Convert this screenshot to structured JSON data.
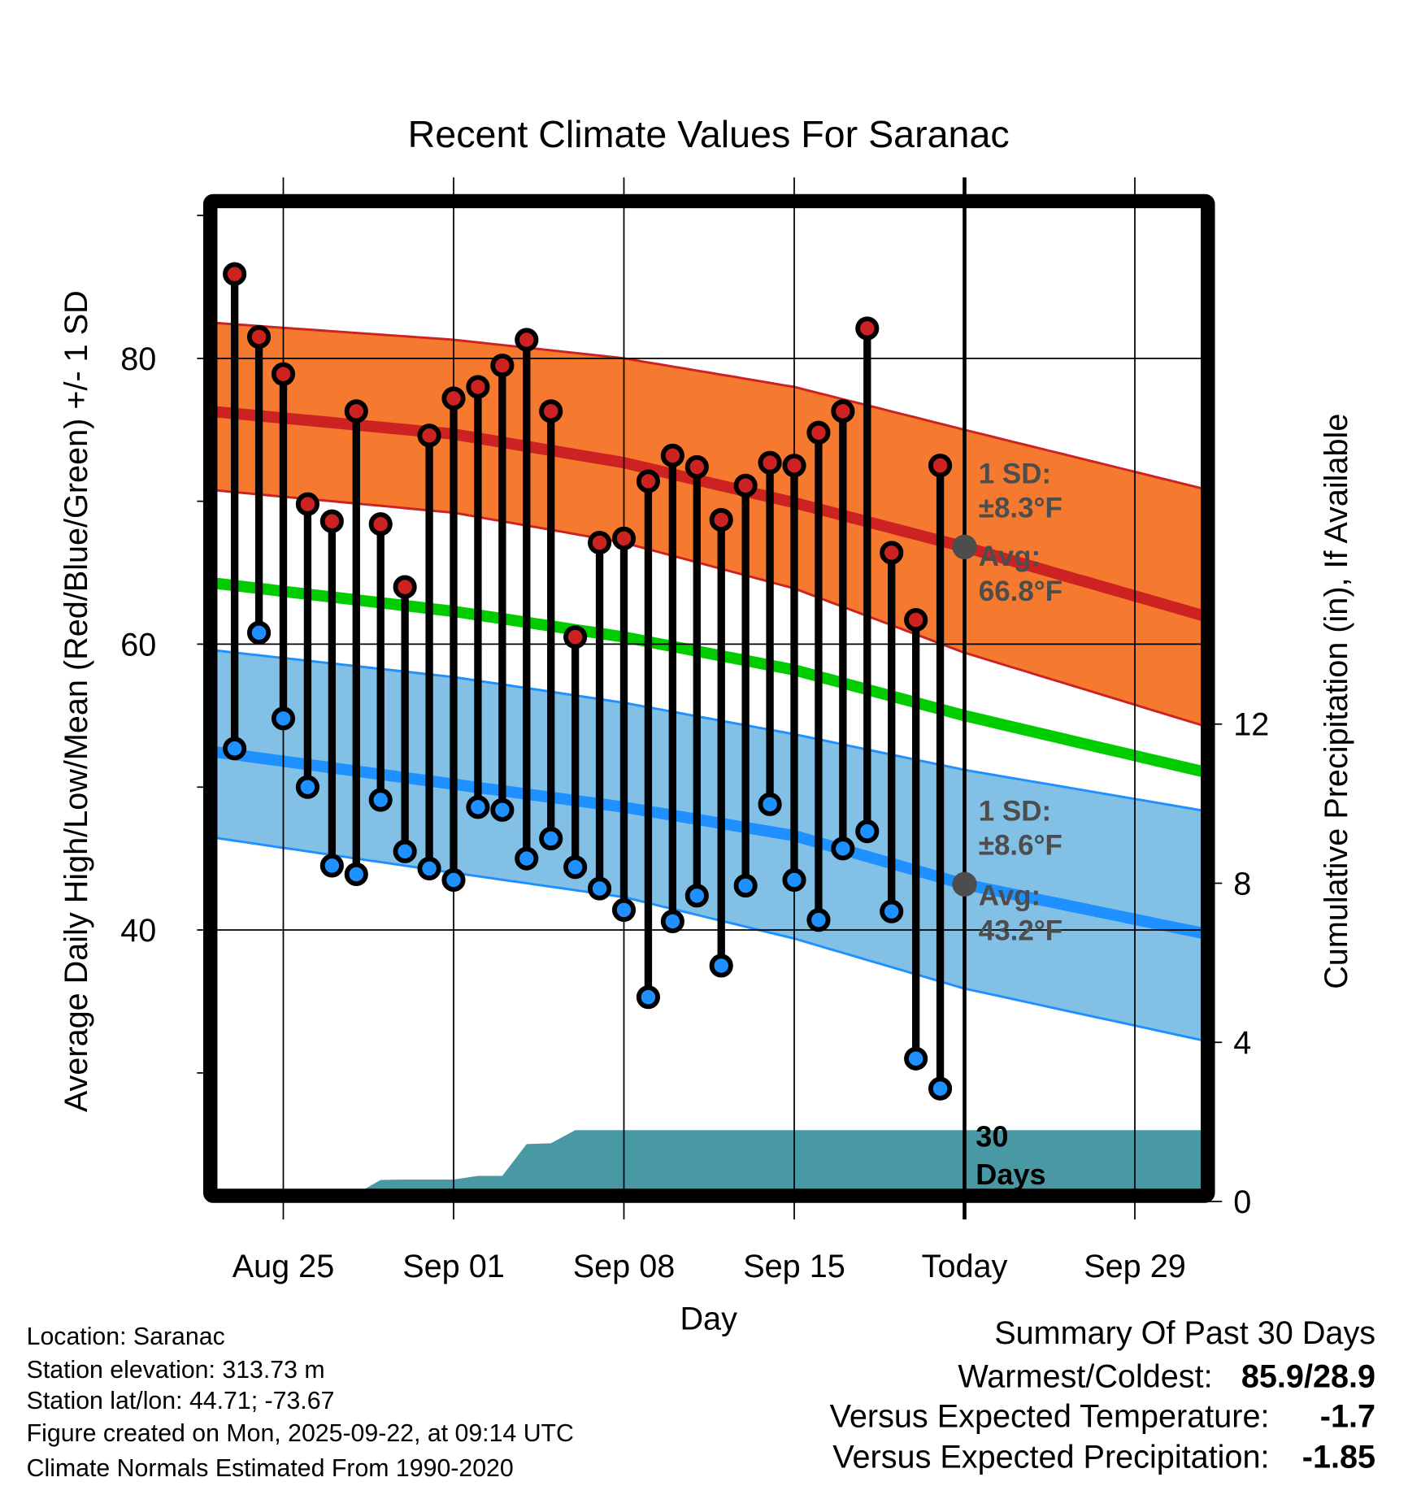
{
  "chart_data": {
    "type": "line",
    "title": "Recent Climate Values For Saranac",
    "xlabel": "Day",
    "ylabel": "Average Daily High/Low/Mean (Red/Blue/Green) +/- 1 SD",
    "y2label": "Cumulative Precipitation (in), If Available",
    "x_start": "Aug 22",
    "x_range_days": [
      0,
      41
    ],
    "ylim": [
      21.4,
      91
    ],
    "y2lim": [
      0,
      25
    ],
    "grid": true,
    "x_ticks": [
      {
        "day": 3,
        "label": "Aug 25"
      },
      {
        "day": 10,
        "label": "Sep 01"
      },
      {
        "day": 17,
        "label": "Sep 08"
      },
      {
        "day": 24,
        "label": "Sep 15"
      },
      {
        "day": 31,
        "label": "Today"
      },
      {
        "day": 38,
        "label": "Sep 29"
      }
    ],
    "y_ticks": [
      {
        "v": 80,
        "label": "80"
      },
      {
        "v": 60,
        "label": "60"
      },
      {
        "v": 40,
        "label": "40"
      }
    ],
    "y_minor_ticks": [
      90,
      70,
      50,
      30
    ],
    "y2_ticks": [
      {
        "v": 0,
        "label": "0"
      },
      {
        "v": 4,
        "label": "4"
      },
      {
        "v": 8,
        "label": "8"
      },
      {
        "v": 12,
        "label": "12"
      }
    ],
    "days": [
      "Aug 23",
      "Aug 24",
      "Aug 25",
      "Aug 26",
      "Aug 27",
      "Aug 28",
      "Aug 29",
      "Aug 30",
      "Aug 31",
      "Sep 01",
      "Sep 02",
      "Sep 03",
      "Sep 04",
      "Sep 05",
      "Sep 06",
      "Sep 07",
      "Sep 08",
      "Sep 09",
      "Sep 10",
      "Sep 11",
      "Sep 12",
      "Sep 13",
      "Sep 14",
      "Sep 15",
      "Sep 16",
      "Sep 17",
      "Sep 18",
      "Sep 19",
      "Sep 20",
      "Sep 21"
    ],
    "series": [
      {
        "name": "Daily High",
        "color": "#cc2222",
        "values": [
          85.9,
          81.5,
          78.9,
          69.8,
          68.6,
          76.3,
          68.4,
          64.0,
          74.6,
          77.2,
          78.0,
          79.5,
          81.3,
          76.3,
          60.5,
          67.1,
          67.4,
          71.4,
          73.2,
          72.4,
          68.7,
          71.1,
          72.7,
          72.5,
          74.8,
          76.3,
          82.1,
          66.4,
          61.7,
          72.5
        ]
      },
      {
        "name": "Daily Low",
        "color": "#1e90ff",
        "values": [
          52.7,
          60.8,
          54.8,
          50.0,
          44.5,
          43.9,
          49.1,
          45.5,
          44.3,
          43.5,
          48.6,
          48.4,
          45.0,
          46.4,
          44.4,
          42.9,
          41.4,
          35.3,
          40.6,
          42.4,
          37.5,
          43.1,
          48.8,
          43.5,
          40.7,
          45.7,
          46.9,
          41.3,
          31.0,
          28.9
        ]
      },
      {
        "name": "Cumulative Precipitation",
        "color": "#4899a3",
        "values": [
          0,
          0,
          0,
          0,
          0,
          0.05,
          0.4,
          0.41,
          0.41,
          0.41,
          0.5,
          0.5,
          1.3,
          1.32,
          1.65,
          1.65,
          1.65,
          1.65,
          1.65,
          1.65,
          1.65,
          1.65,
          1.65,
          1.65,
          1.65,
          1.65,
          1.65,
          1.65,
          1.65,
          1.65
        ]
      }
    ],
    "normals": {
      "days": [
        0,
        10,
        17,
        24,
        31,
        41
      ],
      "high_mean": [
        76.3,
        74.7,
        72.7,
        69.9,
        66.8,
        61.9
      ],
      "high_upper": [
        82.5,
        81.3,
        80.0,
        78.0,
        75.0,
        70.8
      ],
      "high_lower": [
        70.8,
        69.2,
        67.1,
        63.9,
        59.4,
        54.2
      ],
      "low_mean": [
        52.5,
        50.2,
        48.6,
        46.6,
        43.2,
        39.7
      ],
      "low_upper": [
        59.6,
        57.7,
        55.9,
        53.7,
        51.2,
        48.3
      ],
      "low_lower": [
        46.5,
        44.0,
        42.3,
        39.4,
        35.9,
        32.2
      ],
      "mean": [
        64.3,
        62.3,
        60.5,
        58.2,
        55.0,
        51.0
      ]
    },
    "annotations": {
      "high_sd_title": "1 SD:",
      "high_sd_value": "±8.3°F",
      "high_avg_title": "Avg:",
      "high_avg_value": "66.8°F",
      "low_sd_title": "1 SD:",
      "low_sd_value": "±8.6°F",
      "low_avg_title": "Avg:",
      "low_avg_value": "43.2°F",
      "precip_line1": "30",
      "precip_line2": "Days"
    },
    "colors": {
      "high_band": "#f57a2f",
      "high_line": "#cc2222",
      "low_band": "#82c0e6",
      "low_line": "#1e90ff",
      "mean_line": "#00cc00",
      "precip": "#4899a3",
      "annotation": "#4d4d4d"
    }
  },
  "info": [
    "Location: Saranac",
    "Station elevation: 313.73 m",
    "Station lat/lon: 44.71; -73.67",
    "Figure created on Mon, 2025-09-22, at 09:14 UTC",
    "Climate Normals Estimated From 1990-2020"
  ],
  "summary": {
    "title": "Summary Of Past 30 Days",
    "warmest_label": "Warmest/Coldest:",
    "warmest_value": "85.9/28.9",
    "temp_label": "Versus Expected Temperature:",
    "temp_value": "-1.7",
    "temp_color": "#1e90ff",
    "precip_label": "Versus Expected Precipitation:",
    "precip_value": "-1.85",
    "precip_color": "#a0522d"
  }
}
